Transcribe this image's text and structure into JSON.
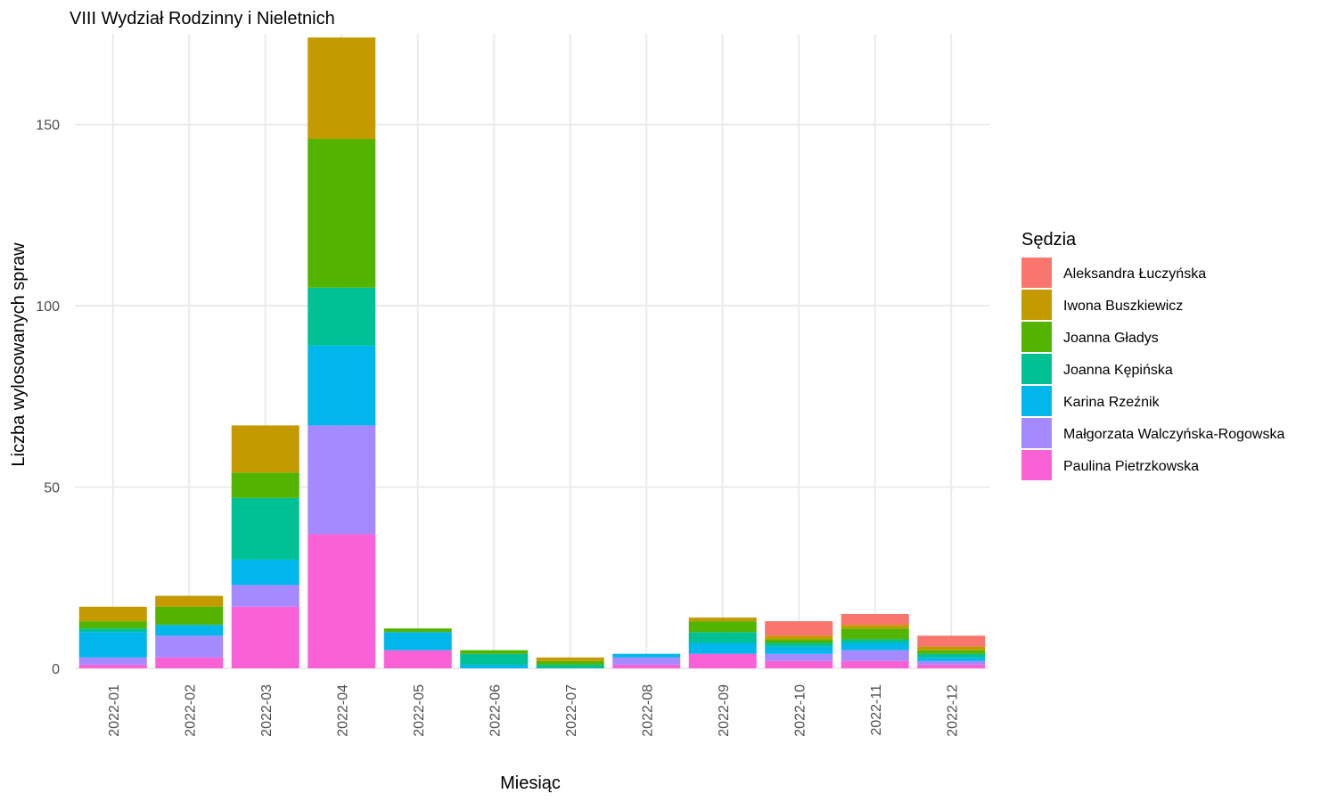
{
  "chart_data": {
    "type": "bar",
    "stacked": true,
    "title": "VIII Wydział Rodzinny i Nieletnich",
    "xlabel": "Miesiąc",
    "ylabel": "Liczba wylosowanych spraw",
    "ylim": [
      0,
      175
    ],
    "yticks": [
      0,
      50,
      100,
      150
    ],
    "grid": true,
    "legend_title": "Sędzia",
    "legend_position": "right",
    "categories": [
      "2022-01",
      "2022-02",
      "2022-03",
      "2022-04",
      "2022-05",
      "2022-06",
      "2022-07",
      "2022-08",
      "2022-09",
      "2022-10",
      "2022-11",
      "2022-12"
    ],
    "series": [
      {
        "name": "Aleksandra Łuczyńska",
        "color": "#F8766D",
        "values": [
          0,
          0,
          0,
          0,
          0,
          0,
          0,
          0,
          0,
          4,
          3,
          3
        ]
      },
      {
        "name": "Iwona Buszkiewicz",
        "color": "#C49A00",
        "values": [
          4,
          3,
          13,
          28,
          0,
          0,
          1,
          0,
          1,
          1,
          1,
          1
        ]
      },
      {
        "name": "Joanna Gładys",
        "color": "#53B400",
        "values": [
          2,
          5,
          7,
          41,
          1,
          1,
          1,
          0,
          3,
          1,
          3,
          1
        ]
      },
      {
        "name": "Joanna Kępińska",
        "color": "#00C094",
        "values": [
          1,
          0,
          17,
          16,
          0,
          3,
          1,
          0,
          3,
          1,
          1,
          1
        ]
      },
      {
        "name": "Karina Rzeźnik",
        "color": "#00B6EB",
        "values": [
          7,
          3,
          7,
          22,
          5,
          1,
          0,
          1,
          3,
          2,
          2,
          1
        ]
      },
      {
        "name": "Małgorzata Walczyńska-Rogowska",
        "color": "#A58AFF",
        "values": [
          2,
          6,
          6,
          30,
          0,
          0,
          0,
          2,
          0,
          2,
          3,
          1
        ]
      },
      {
        "name": "Paulina Pietrzkowska",
        "color": "#FB61D7",
        "values": [
          1,
          3,
          17,
          37,
          5,
          0,
          0,
          1,
          4,
          2,
          2,
          1
        ]
      }
    ]
  }
}
